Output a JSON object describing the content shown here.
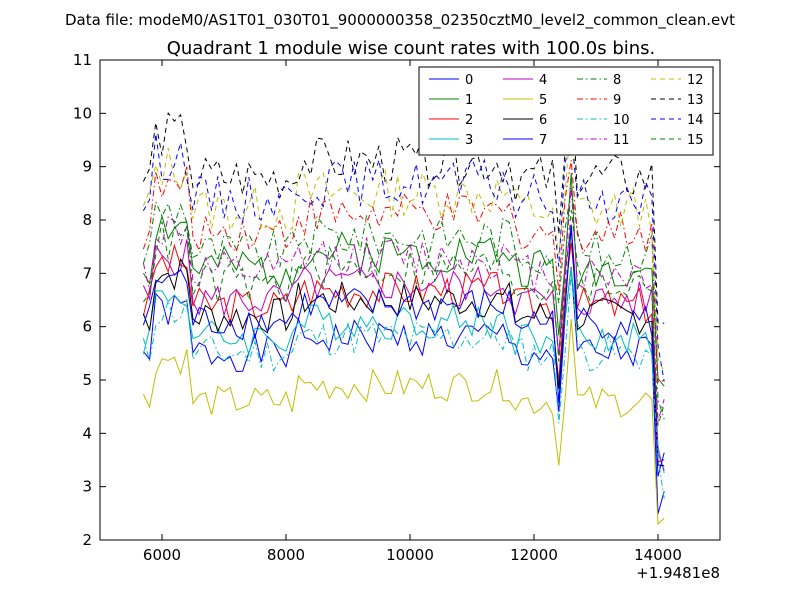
{
  "chart_data": {
    "type": "line",
    "header": "Data file: modeM0/AS1T01_030T01_9000000358_02350cztM0_level2_common_clean.evt",
    "title": "Quadrant 1 module wise count rates with 100.0s bins.",
    "xlabel": "",
    "ylabel": "",
    "x_offset_label": "+1.9481e8",
    "xlim": [
      5000,
      15000
    ],
    "ylim": [
      2,
      11
    ],
    "xticks": [
      "6000",
      "8000",
      "10000",
      "12000",
      "14000"
    ],
    "yticks": [
      "2",
      "3",
      "4",
      "5",
      "6",
      "7",
      "8",
      "9",
      "10",
      "11"
    ],
    "x_start": 5700,
    "x_end": 14100,
    "x_step": 100,
    "grid": false,
    "legend_position": "top-right",
    "series": [
      {
        "name": "0",
        "color": "#0000ff",
        "dash": "solid",
        "level": 5.5,
        "amp": 0.35,
        "seed": 1
      },
      {
        "name": "1",
        "color": "#008000",
        "dash": "solid",
        "level": 7.1,
        "amp": 0.4,
        "seed": 2
      },
      {
        "name": "2",
        "color": "#ff0000",
        "dash": "solid",
        "level": 6.4,
        "amp": 0.35,
        "seed": 3
      },
      {
        "name": "3",
        "color": "#00bfbf",
        "dash": "solid",
        "level": 5.8,
        "amp": 0.35,
        "seed": 4
      },
      {
        "name": "4",
        "color": "#bf00bf",
        "dash": "solid",
        "level": 6.5,
        "amp": 0.35,
        "seed": 5
      },
      {
        "name": "5",
        "color": "#bfbf00",
        "dash": "solid",
        "level": 4.6,
        "amp": 0.3,
        "seed": 6
      },
      {
        "name": "6",
        "color": "#000000",
        "dash": "solid",
        "level": 6.2,
        "amp": 0.35,
        "seed": 7
      },
      {
        "name": "7",
        "color": "#0000ff",
        "dash": "solid",
        "level": 6.1,
        "amp": 0.35,
        "seed": 8
      },
      {
        "name": "8",
        "color": "#008000",
        "dash": "dashdot",
        "level": 7.4,
        "amp": 0.4,
        "seed": 9
      },
      {
        "name": "9",
        "color": "#ff0000",
        "dash": "dashdot",
        "level": 7.8,
        "amp": 0.4,
        "seed": 10
      },
      {
        "name": "10",
        "color": "#00bfbf",
        "dash": "dashdot",
        "level": 5.5,
        "amp": 0.35,
        "seed": 11
      },
      {
        "name": "11",
        "color": "#bf00bf",
        "dash": "dashdot",
        "level": 7.0,
        "amp": 0.4,
        "seed": 12
      },
      {
        "name": "12",
        "color": "#bfbf00",
        "dash": "dashed",
        "level": 8.2,
        "amp": 0.45,
        "seed": 13
      },
      {
        "name": "13",
        "color": "#000000",
        "dash": "dashed",
        "level": 8.8,
        "amp": 0.45,
        "seed": 14
      },
      {
        "name": "14",
        "color": "#0000ff",
        "dash": "dashed",
        "level": 8.4,
        "amp": 0.45,
        "seed": 15
      },
      {
        "name": "15",
        "color": "#008000",
        "dash": "dashed",
        "level": 6.8,
        "amp": 0.4,
        "seed": 16
      }
    ]
  }
}
